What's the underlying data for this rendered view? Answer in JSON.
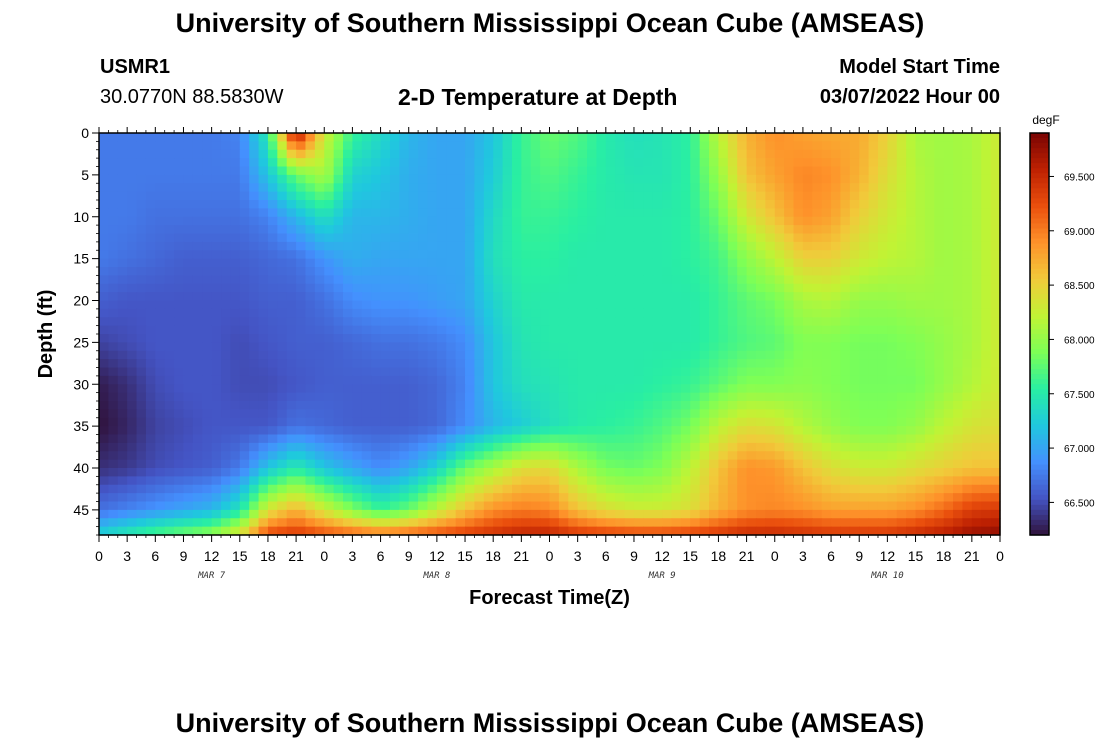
{
  "header": {
    "title": "University of Southern Mississippi Ocean Cube (AMSEAS)",
    "station_id": "USMR1",
    "station_coords": "30.0770N  88.5830W",
    "plot_title": "2-D Temperature at Depth",
    "model_start_label": "Model Start Time",
    "model_start_value": "03/07/2022 Hour 00"
  },
  "footer": {
    "title": "University of Southern Mississippi Ocean Cube (AMSEAS)"
  },
  "colors": {
    "colormap": [
      "#30123b",
      "#4454c4",
      "#4490fe",
      "#1fc8de",
      "#29efa2",
      "#7dff56",
      "#c1f334",
      "#f1ca3a",
      "#fe922a",
      "#ea4f0d",
      "#be2102",
      "#7a0403"
    ]
  },
  "chart_data": {
    "type": "heatmap",
    "title": "2-D Temperature at Depth",
    "xlabel": "Forecast Time(Z)",
    "ylabel": "Depth (ft)",
    "x_hours_range": [
      0,
      96
    ],
    "ylim": [
      0,
      48
    ],
    "y_inverted": true,
    "x_tick_labels": [
      "0",
      "3",
      "6",
      "9",
      "12",
      "15",
      "18",
      "21",
      "0",
      "3",
      "6",
      "9",
      "12",
      "15",
      "18",
      "21",
      "0",
      "3",
      "6",
      "9",
      "12",
      "15",
      "18",
      "21",
      "0",
      "3",
      "6",
      "9",
      "12",
      "15",
      "18",
      "21",
      "0"
    ],
    "x_tick_hours": [
      0,
      3,
      6,
      9,
      12,
      15,
      18,
      21,
      24,
      27,
      30,
      33,
      36,
      39,
      42,
      45,
      48,
      51,
      54,
      57,
      60,
      63,
      66,
      69,
      72,
      75,
      78,
      81,
      84,
      87,
      90,
      93,
      96
    ],
    "day_labels": [
      {
        "text": "MAR 7",
        "hour": 12
      },
      {
        "text": "MAR 8",
        "hour": 36
      },
      {
        "text": "MAR 9",
        "hour": 60
      },
      {
        "text": "MAR 10",
        "hour": 84
      }
    ],
    "y_ticks": [
      0,
      5,
      10,
      15,
      20,
      25,
      30,
      35,
      40,
      45
    ],
    "colorbar": {
      "unit": "degF",
      "range": [
        66.2,
        69.9
      ],
      "ticks": [
        66.5,
        67.0,
        67.5,
        68.0,
        68.5,
        69.0,
        69.5
      ],
      "tick_labels": [
        "66.500",
        "67.000",
        "67.500",
        "68.000",
        "68.500",
        "69.000",
        "69.500"
      ]
    },
    "grid_hours": [
      0,
      3,
      6,
      9,
      12,
      15,
      18,
      21,
      24,
      27,
      30,
      33,
      36,
      39,
      42,
      45,
      48,
      51,
      54,
      57,
      60,
      63,
      66,
      69,
      72,
      75,
      78,
      81,
      84,
      87,
      90,
      93,
      96
    ],
    "grid_depths": [
      0,
      5,
      10,
      15,
      20,
      25,
      30,
      35,
      40,
      45,
      48
    ],
    "values": [
      [
        66.75,
        66.75,
        66.75,
        66.75,
        66.75,
        66.8,
        67.5,
        69.7,
        68.3,
        67.6,
        67.35,
        67.1,
        67.0,
        67.0,
        67.2,
        67.6,
        67.8,
        67.7,
        67.5,
        67.4,
        67.45,
        67.55,
        68.2,
        68.7,
        68.9,
        68.8,
        68.75,
        68.75,
        68.5,
        68.1,
        68.05,
        68.1,
        68.3
      ],
      [
        66.75,
        66.75,
        66.75,
        66.75,
        66.75,
        66.75,
        67.2,
        67.8,
        68.1,
        67.3,
        67.2,
        67.05,
        67.0,
        67.0,
        67.25,
        67.6,
        67.7,
        67.6,
        67.5,
        67.45,
        67.45,
        67.55,
        68.0,
        68.6,
        68.8,
        68.95,
        68.9,
        68.7,
        68.4,
        68.15,
        68.05,
        68.1,
        68.3
      ],
      [
        66.75,
        66.75,
        66.7,
        66.7,
        66.7,
        66.7,
        66.8,
        67.1,
        67.4,
        67.1,
        67.1,
        67.05,
        67.0,
        67.0,
        67.35,
        67.6,
        67.6,
        67.55,
        67.5,
        67.5,
        67.5,
        67.55,
        67.8,
        68.3,
        68.6,
        68.9,
        68.8,
        68.5,
        68.3,
        68.15,
        68.05,
        68.1,
        68.3
      ],
      [
        66.75,
        66.7,
        66.65,
        66.6,
        66.6,
        66.6,
        66.65,
        66.7,
        66.9,
        67.05,
        67.0,
        67.0,
        67.0,
        67.0,
        67.4,
        67.55,
        67.55,
        67.5,
        67.5,
        67.5,
        67.5,
        67.55,
        67.65,
        67.95,
        68.2,
        68.5,
        68.5,
        68.3,
        68.2,
        68.15,
        68.05,
        68.1,
        68.3
      ],
      [
        66.6,
        66.55,
        66.55,
        66.55,
        66.55,
        66.55,
        66.6,
        66.6,
        66.7,
        66.85,
        66.9,
        66.9,
        66.95,
        67.0,
        67.3,
        67.5,
        67.5,
        67.5,
        67.5,
        67.5,
        67.5,
        67.5,
        67.6,
        67.75,
        67.85,
        68.1,
        68.15,
        68.0,
        68.0,
        68.05,
        68.05,
        68.1,
        68.3
      ],
      [
        66.45,
        66.5,
        66.55,
        66.55,
        66.55,
        66.5,
        66.55,
        66.6,
        66.6,
        66.65,
        66.7,
        66.7,
        66.75,
        66.85,
        67.2,
        67.45,
        67.5,
        67.5,
        67.5,
        67.5,
        67.5,
        67.5,
        67.6,
        67.7,
        67.75,
        67.9,
        67.9,
        67.85,
        67.85,
        67.9,
        68.0,
        68.1,
        68.3
      ],
      [
        66.25,
        66.35,
        66.5,
        66.55,
        66.55,
        66.5,
        66.5,
        66.55,
        66.6,
        66.6,
        66.6,
        66.6,
        66.65,
        66.8,
        67.2,
        67.4,
        67.45,
        67.5,
        67.5,
        67.5,
        67.55,
        67.6,
        67.75,
        67.9,
        67.9,
        67.95,
        67.9,
        67.85,
        67.85,
        67.85,
        68.0,
        68.15,
        68.3
      ],
      [
        66.2,
        66.3,
        66.45,
        66.5,
        66.55,
        66.55,
        66.55,
        66.7,
        66.65,
        66.6,
        66.6,
        66.6,
        66.65,
        66.85,
        67.1,
        67.25,
        67.4,
        67.5,
        67.55,
        67.6,
        67.7,
        67.85,
        68.2,
        68.4,
        68.35,
        68.15,
        68.0,
        67.9,
        67.9,
        68.0,
        68.2,
        68.35,
        68.4
      ],
      [
        66.35,
        66.4,
        66.5,
        66.55,
        66.6,
        66.75,
        67.2,
        67.5,
        67.2,
        67.0,
        66.85,
        67.0,
        67.3,
        67.8,
        68.1,
        68.4,
        68.45,
        68.1,
        67.85,
        67.8,
        67.9,
        68.2,
        68.6,
        68.9,
        68.85,
        68.6,
        68.4,
        68.3,
        68.3,
        68.4,
        68.5,
        68.6,
        68.6
      ],
      [
        66.7,
        66.8,
        66.9,
        67.0,
        67.1,
        67.45,
        68.35,
        68.7,
        68.3,
        67.9,
        67.6,
        67.8,
        68.2,
        68.6,
        68.9,
        69.0,
        68.95,
        68.6,
        68.4,
        68.3,
        68.3,
        68.4,
        68.7,
        68.9,
        68.95,
        68.9,
        68.8,
        68.8,
        68.8,
        68.9,
        69.1,
        69.35,
        69.4
      ],
      [
        67.3,
        67.5,
        67.7,
        67.85,
        68.0,
        68.4,
        69.3,
        69.4,
        69.25,
        69.15,
        69.05,
        69.15,
        69.25,
        69.35,
        69.45,
        69.55,
        69.55,
        69.4,
        69.35,
        69.3,
        69.3,
        69.35,
        69.4,
        69.5,
        69.5,
        69.45,
        69.4,
        69.4,
        69.4,
        69.5,
        69.6,
        69.75,
        69.8
      ]
    ]
  }
}
